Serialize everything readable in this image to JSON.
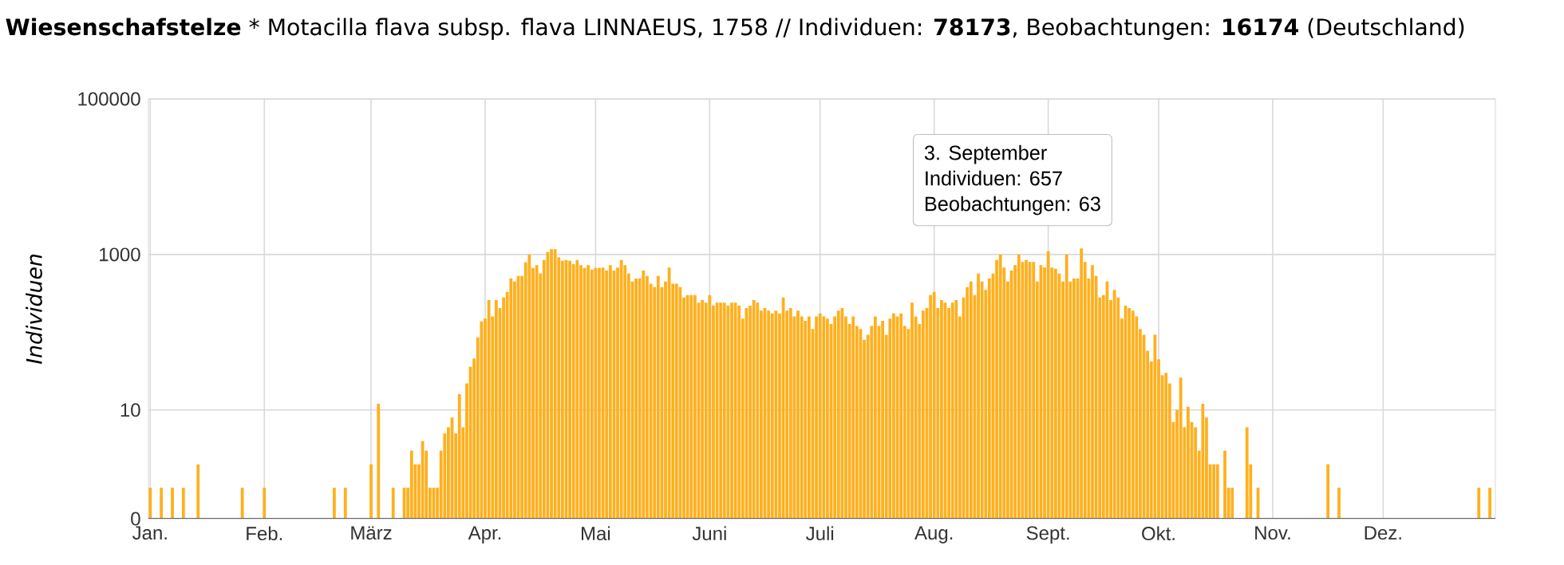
{
  "chart_data": {
    "type": "bar",
    "title": "**Wiesenschafstelze** * Motacilla flava subsp. flava LINNAEUS, 1758 // Individuen: **78173**, Beobachtungen: **16174** (Deutschland)",
    "ylabel": "*Individuen*",
    "annotations": [
      "3. September",
      "Individuen: 657",
      "Beobachtungen: 63"
    ],
    "log": "y",
    "grid": true,
    "color": "#ffb01e",
    "ylim": [
      0.4,
      100000
    ],
    "yticks": [
      {
        "value": 0.4,
        "label": "0"
      },
      10,
      1000,
      100000
    ],
    "categories": [
      "Jan.",
      null,
      null,
      null,
      null,
      null,
      null,
      null,
      null,
      null,
      null,
      null,
      null,
      null,
      null,
      null,
      null,
      null,
      null,
      null,
      null,
      null,
      null,
      null,
      null,
      null,
      null,
      null,
      null,
      null,
      null,
      "Feb.",
      null,
      null,
      null,
      null,
      null,
      null,
      null,
      null,
      null,
      null,
      null,
      null,
      null,
      null,
      null,
      null,
      null,
      null,
      null,
      null,
      null,
      null,
      null,
      null,
      null,
      null,
      null,
      null,
      "März",
      null,
      null,
      null,
      null,
      null,
      null,
      null,
      null,
      null,
      null,
      null,
      null,
      null,
      null,
      null,
      null,
      null,
      null,
      null,
      null,
      null,
      null,
      null,
      null,
      null,
      null,
      null,
      null,
      null,
      null,
      "Apr.",
      null,
      null,
      null,
      null,
      null,
      null,
      null,
      null,
      null,
      null,
      null,
      null,
      null,
      null,
      null,
      null,
      null,
      null,
      null,
      null,
      null,
      null,
      null,
      null,
      null,
      null,
      null,
      null,
      null,
      "Mai",
      null,
      null,
      null,
      null,
      null,
      null,
      null,
      null,
      null,
      null,
      null,
      null,
      null,
      null,
      null,
      null,
      null,
      null,
      null,
      null,
      null,
      null,
      null,
      null,
      null,
      null,
      null,
      null,
      null,
      null,
      "Juni",
      null,
      null,
      null,
      null,
      null,
      null,
      null,
      null,
      null,
      null,
      null,
      null,
      null,
      null,
      null,
      null,
      null,
      null,
      null,
      null,
      null,
      null,
      null,
      null,
      null,
      null,
      null,
      null,
      null,
      "Juli",
      null,
      null,
      null,
      null,
      null,
      null,
      null,
      null,
      null,
      null,
      null,
      null,
      null,
      null,
      null,
      null,
      null,
      null,
      null,
      null,
      null,
      null,
      null,
      null,
      null,
      null,
      null,
      null,
      null,
      null,
      "Aug.",
      null,
      null,
      null,
      null,
      null,
      null,
      null,
      null,
      null,
      null,
      null,
      null,
      null,
      null,
      null,
      null,
      null,
      null,
      null,
      null,
      null,
      null,
      null,
      null,
      null,
      null,
      null,
      null,
      null,
      null,
      "Sept.",
      null,
      null,
      null,
      null,
      null,
      null,
      null,
      null,
      null,
      null,
      null,
      null,
      null,
      null,
      null,
      null,
      null,
      null,
      null,
      null,
      null,
      null,
      null,
      null,
      null,
      null,
      null,
      null,
      null,
      "Okt.",
      null,
      null,
      null,
      null,
      null,
      null,
      null,
      null,
      null,
      null,
      null,
      null,
      null,
      null,
      null,
      null,
      null,
      null,
      null,
      null,
      null,
      null,
      null,
      null,
      null,
      null,
      null,
      null,
      null,
      null,
      "Nov.",
      null,
      null,
      null,
      null,
      null,
      null,
      null,
      null,
      null,
      null,
      null,
      null,
      null,
      null,
      null,
      null,
      null,
      null,
      null,
      null,
      null,
      null,
      null,
      null,
      null,
      null,
      null,
      null,
      null,
      "Dez.",
      null,
      null,
      null,
      null,
      null,
      null,
      null,
      null,
      null,
      null,
      null,
      null,
      null,
      null,
      null,
      null,
      null,
      null,
      null,
      null,
      null,
      null,
      null,
      null,
      null,
      null,
      null,
      null,
      null,
      null
    ],
    "values": [
      1,
      null,
      null,
      1,
      null,
      null,
      1,
      null,
      null,
      1,
      null,
      null,
      null,
      2,
      null,
      null,
      null,
      null,
      null,
      null,
      null,
      null,
      null,
      null,
      null,
      1,
      null,
      null,
      null,
      null,
      null,
      1,
      null,
      null,
      null,
      null,
      null,
      null,
      null,
      null,
      null,
      null,
      null,
      null,
      null,
      null,
      null,
      null,
      null,
      null,
      1,
      null,
      null,
      1,
      null,
      null,
      null,
      null,
      null,
      null,
      2,
      null,
      12,
      null,
      null,
      null,
      1,
      null,
      null,
      1,
      1,
      3,
      2,
      2,
      4,
      3,
      1,
      1,
      1,
      3,
      5,
      6,
      8,
      5,
      16,
      6,
      22,
      36,
      46,
      86,
      138,
      150,
      260,
      160,
      260,
      205,
      280,
      330,
      490,
      450,
      530,
      530,
      790,
      1000,
      670,
      730,
      570,
      850,
      1080,
      1170,
      1170,
      920,
      830,
      850,
      830,
      750,
      850,
      730,
      670,
      730,
      640,
      670,
      670,
      680,
      620,
      730,
      620,
      680,
      850,
      730,
      570,
      450,
      490,
      490,
      620,
      530,
      420,
      380,
      530,
      380,
      450,
      680,
      420,
      420,
      380,
      280,
      300,
      300,
      300,
      240,
      260,
      240,
      300,
      220,
      240,
      240,
      240,
      220,
      240,
      240,
      220,
      150,
      205,
      220,
      260,
      240,
      190,
      205,
      190,
      175,
      190,
      175,
      280,
      190,
      205,
      160,
      190,
      160,
      140,
      160,
      110,
      160,
      175,
      160,
      150,
      128,
      160,
      190,
      205,
      160,
      128,
      160,
      120,
      110,
      80,
      93,
      120,
      160,
      120,
      140,
      93,
      150,
      175,
      160,
      175,
      120,
      110,
      240,
      160,
      128,
      190,
      205,
      300,
      330,
      205,
      260,
      240,
      205,
      240,
      260,
      160,
      280,
      380,
      450,
      300,
      570,
      450,
      350,
      490,
      570,
      850,
      1000,
      680,
      450,
      620,
      730,
      1000,
      800,
      850,
      800,
      800,
      450,
      730,
      680,
      1100,
      680,
      657,
      570,
      450,
      1000,
      450,
      490,
      490,
      1200,
      800,
      490,
      730,
      530,
      280,
      300,
      450,
      260,
      350,
      280,
      150,
      220,
      205,
      190,
      160,
      110,
      93,
      58,
      42,
      93,
      45,
      28,
      30,
      22,
      7,
      10,
      26,
      6,
      11,
      7,
      6,
      3,
      12,
      8,
      2,
      2,
      2,
      null,
      3,
      1,
      1,
      null,
      null,
      null,
      6,
      2,
      null,
      1,
      null,
      null,
      null,
      null,
      null,
      null,
      null,
      null,
      null,
      null,
      null,
      null,
      null,
      null,
      null,
      null,
      null,
      null,
      2,
      null,
      null,
      1,
      null,
      null,
      null,
      null,
      null,
      null,
      null,
      null,
      null,
      null,
      null,
      null,
      null,
      null,
      null,
      null,
      null,
      null,
      null,
      null,
      null,
      null,
      null,
      null,
      null,
      null,
      null,
      null,
      null,
      null,
      null,
      null,
      null,
      null,
      null,
      null,
      null,
      1,
      null,
      null,
      1,
      null
    ]
  }
}
